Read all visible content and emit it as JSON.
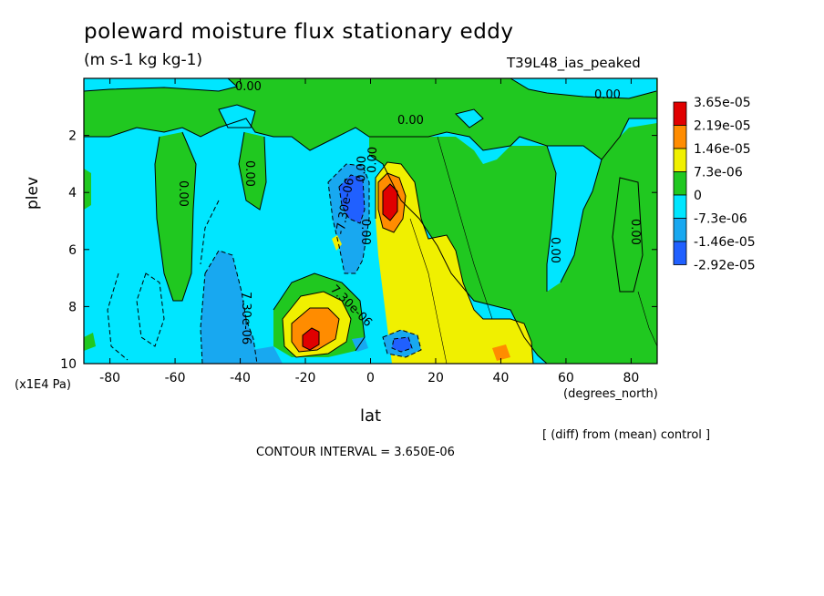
{
  "chart_data": {
    "type": "heatmap",
    "title": "poleward moisture flux stationary eddy",
    "units": "(m s-1 kg kg-1)",
    "experiment": "T39L48_ias_peaked",
    "xlabel": "lat",
    "ylabel": "plev",
    "x_unit": "(degrees_north)",
    "y_unit": "(x1E4 Pa)",
    "xlim": [
      -88,
      88
    ],
    "ylim": [
      0,
      10
    ],
    "y_inverted": true,
    "x_ticks": [
      "-80",
      "-60",
      "-40",
      "-20",
      "0",
      "20",
      "40",
      "60",
      "80"
    ],
    "y_ticks": [
      "2",
      "4",
      "6",
      "8",
      "10"
    ],
    "note": "[ (diff) from (mean) control ]",
    "contour_interval": "CONTOUR INTERVAL = 3.650E-06",
    "colorbar": {
      "labels": [
        "3.65e-05",
        "2.19e-05",
        "1.46e-05",
        "7.3e-06",
        "0",
        "-7.3e-06",
        "-1.46e-05",
        "-2.92e-05"
      ],
      "colors": [
        "#e00000",
        "#ff8c00",
        "#f0f000",
        "#20c820",
        "#00e6ff",
        "#18a8f0",
        "#2060ff"
      ]
    },
    "colors": {
      "background_level": "#00e6ff",
      "positive_small": "#20c820",
      "positive_mid": "#f0f000",
      "positive_high": "#ff8c00",
      "positive_max": "#e00000",
      "negative_small": "#18a8f0",
      "negative_large": "#2060ff"
    },
    "contour_labels": [
      "0.00",
      "0.00",
      "0.00",
      "0.00",
      "0.00",
      "0.00",
      "0.00",
      "0.00",
      "7.30e-06",
      "7.30e-06",
      "-7.30e-06",
      "0.00",
      "0.00"
    ],
    "regions": [
      {
        "value_class": "positive_small",
        "desc": "broad green band aloft",
        "lat_range": [
          -88,
          88
        ],
        "plev_range": [
          0.5,
          2.5
        ]
      },
      {
        "value_class": "positive_mid",
        "desc": "yellow column NH subtropics",
        "lat_range": [
          5,
          45
        ],
        "plev_range": [
          3.5,
          10
        ]
      },
      {
        "value_class": "positive_max",
        "desc": "red core near equator",
        "lat_range": [
          4,
          8
        ],
        "plev_range": [
          3.5,
          5
        ]
      },
      {
        "value_class": "positive_max",
        "desc": "red core SH low levels",
        "lat_range": [
          -22,
          -16
        ],
        "plev_range": [
          8.8,
          9.6
        ]
      },
      {
        "value_class": "negative_large",
        "desc": "blue core near equator",
        "lat_range": [
          -5,
          0
        ],
        "plev_range": [
          3,
          5.5
        ]
      },
      {
        "value_class": "negative_small",
        "desc": "light blue SH midlatitudes",
        "lat_range": [
          -52,
          -36
        ],
        "plev_range": [
          6,
          10
        ]
      }
    ]
  }
}
